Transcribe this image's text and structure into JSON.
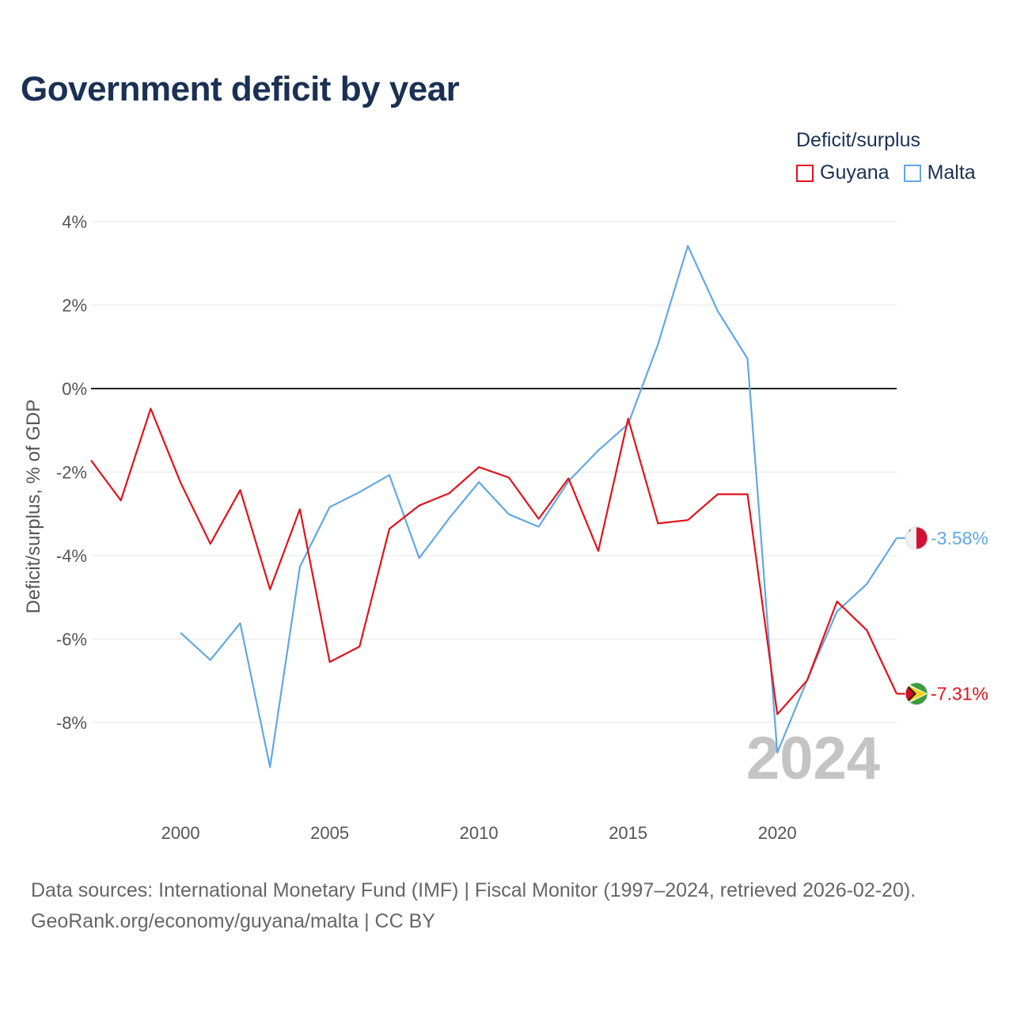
{
  "chart_data": {
    "type": "line",
    "title": "Government deficit by year",
    "xlabel": "",
    "ylabel": "Deficit/surplus, % of GDP",
    "x": [
      1997,
      1998,
      1999,
      2000,
      2001,
      2002,
      2003,
      2004,
      2005,
      2006,
      2007,
      2008,
      2009,
      2010,
      2011,
      2012,
      2013,
      2014,
      2015,
      2016,
      2017,
      2018,
      2019,
      2020,
      2021,
      2022,
      2023,
      2024
    ],
    "xlim": [
      1997,
      2024
    ],
    "ylim": [
      -10,
      4.3
    ],
    "y_ticks": [
      4,
      2,
      0,
      -2,
      -4,
      -6,
      -8
    ],
    "y_tick_labels": [
      "4%",
      "2%",
      "0%",
      "-2%",
      "-4%",
      "-6%",
      "-8%"
    ],
    "x_ticks": [
      2000,
      2005,
      2010,
      2015,
      2020
    ],
    "x_tick_labels": [
      "2000",
      "2005",
      "2010",
      "2015",
      "2020"
    ],
    "legend_title": "Deficit/surplus",
    "legend_position": "top-right",
    "current_year": "2024",
    "series": [
      {
        "name": "Guyana",
        "color": "#e3121b",
        "flag_icon": "guyana-flag-icon",
        "end_label": "-7.31%",
        "values": [
          -1.72,
          -2.68,
          -0.48,
          -2.25,
          -3.72,
          -2.43,
          -4.81,
          -2.89,
          -6.55,
          -6.18,
          -3.36,
          -2.8,
          -2.51,
          -1.88,
          -2.13,
          -3.12,
          -2.15,
          -3.89,
          -0.72,
          -3.23,
          -3.15,
          -2.53,
          -2.53,
          -7.8,
          -6.99,
          -5.1,
          -5.79,
          -7.31
        ]
      },
      {
        "name": "Malta",
        "color": "#62a8e3",
        "flag_icon": "malta-flag-icon",
        "end_label": "-3.58%",
        "values": [
          null,
          null,
          null,
          -5.85,
          -6.5,
          -5.62,
          -9.07,
          -4.27,
          -2.84,
          -2.48,
          -2.07,
          -4.06,
          -3.11,
          -2.24,
          -3.01,
          -3.31,
          -2.22,
          -1.48,
          -0.85,
          1.06,
          3.42,
          1.86,
          0.72,
          -8.72,
          -6.98,
          -5.34,
          -4.68,
          -3.58
        ]
      }
    ]
  },
  "footer": {
    "source_line": "Data sources: International Monetary Fund (IMF) | Fiscal Monitor (1997–2024, retrieved 2026-02-20).",
    "credit_line": "GeoRank.org/economy/guyana/malta | CC BY"
  }
}
